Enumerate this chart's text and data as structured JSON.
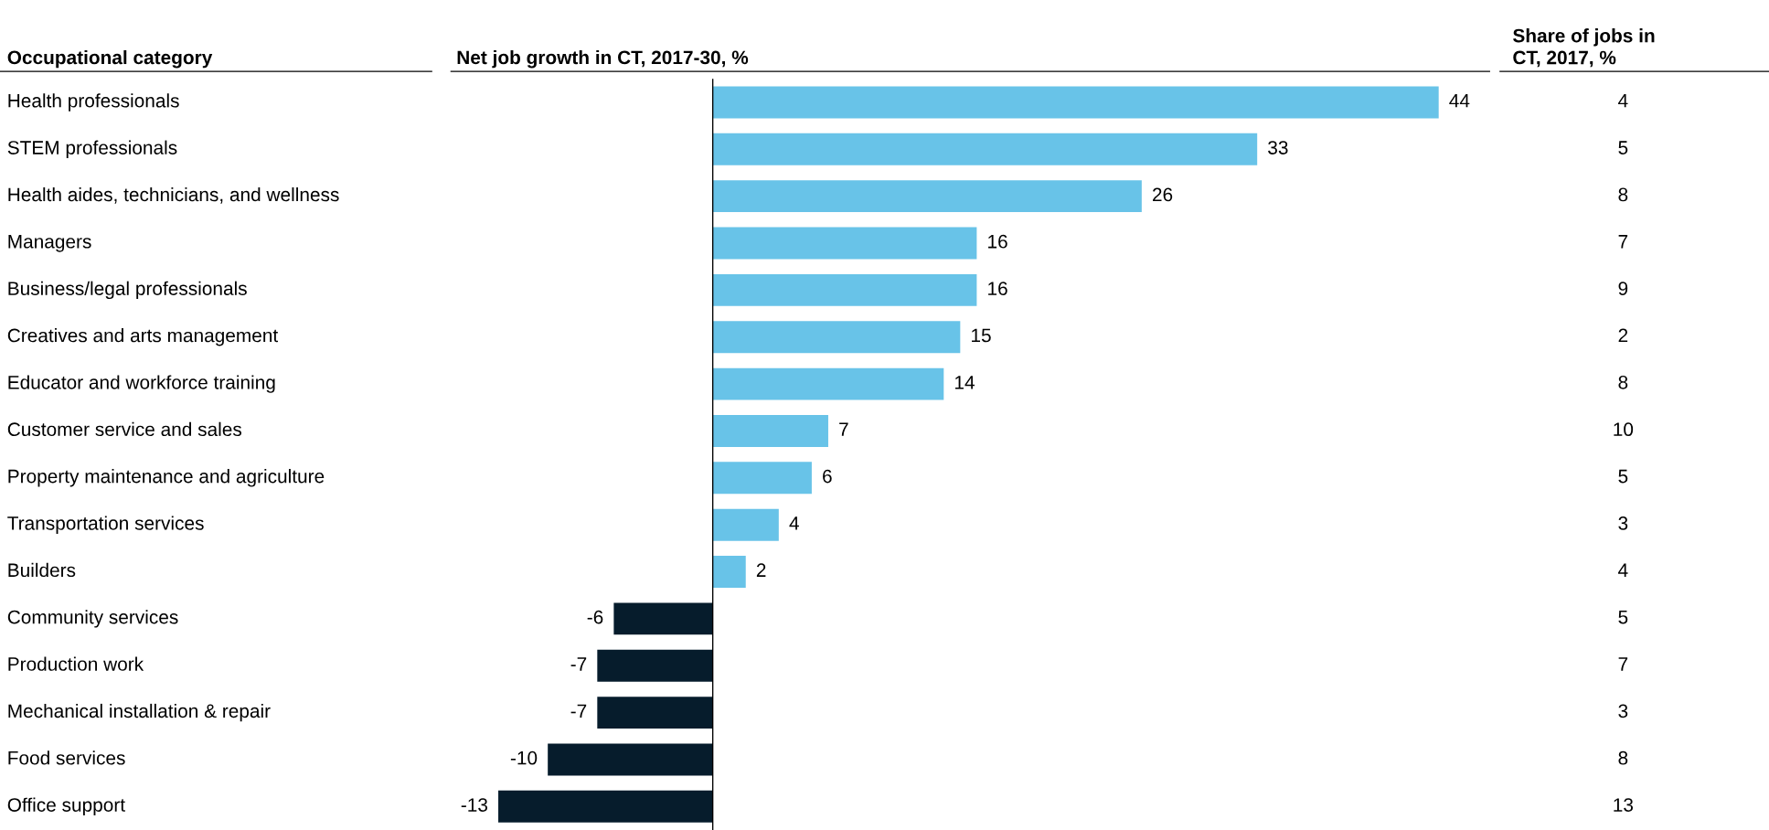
{
  "chart_data": [
    {
      "type": "bar",
      "orientation": "horizontal",
      "title": "Net job growth in CT, 2017-30, %",
      "ylabel": "Occupational category",
      "categories": [
        "Health professionals",
        "STEM professionals",
        "Health aides, technicians, and wellness",
        "Managers",
        "Business/legal professionals",
        "Creatives and arts management",
        "Educator and workforce training",
        "Customer service and sales",
        "Property maintenance and agriculture",
        "Transportation services",
        "Builders",
        "Community services",
        "Production work",
        "Mechanical installation & repair",
        "Food services",
        "Office support"
      ],
      "values": [
        44,
        33,
        26,
        16,
        16,
        15,
        14,
        7,
        6,
        4,
        2,
        -6,
        -7,
        -7,
        -10,
        -13
      ],
      "colors": [
        "#68c3e8",
        "#68c3e8",
        "#68c3e8",
        "#68c3e8",
        "#68c3e8",
        "#68c3e8",
        "#68c3e8",
        "#68c3e8",
        "#68c3e8",
        "#68c3e8",
        "#68c3e8",
        "#061c2c",
        "#061c2c",
        "#061c2c",
        "#061c2c",
        "#061c2c"
      ],
      "data_labels": true
    },
    {
      "type": "other",
      "title": "Share of jobs in\nCT, 2017, %",
      "categories": [
        null,
        null,
        null,
        null,
        null,
        null,
        null,
        null,
        null,
        null,
        null,
        null,
        null,
        null,
        null,
        null
      ],
      "values": [
        4,
        5,
        8,
        7,
        9,
        2,
        8,
        10,
        5,
        3,
        4,
        5,
        7,
        3,
        8,
        13
      ],
      "data_labels": true
    }
  ]
}
